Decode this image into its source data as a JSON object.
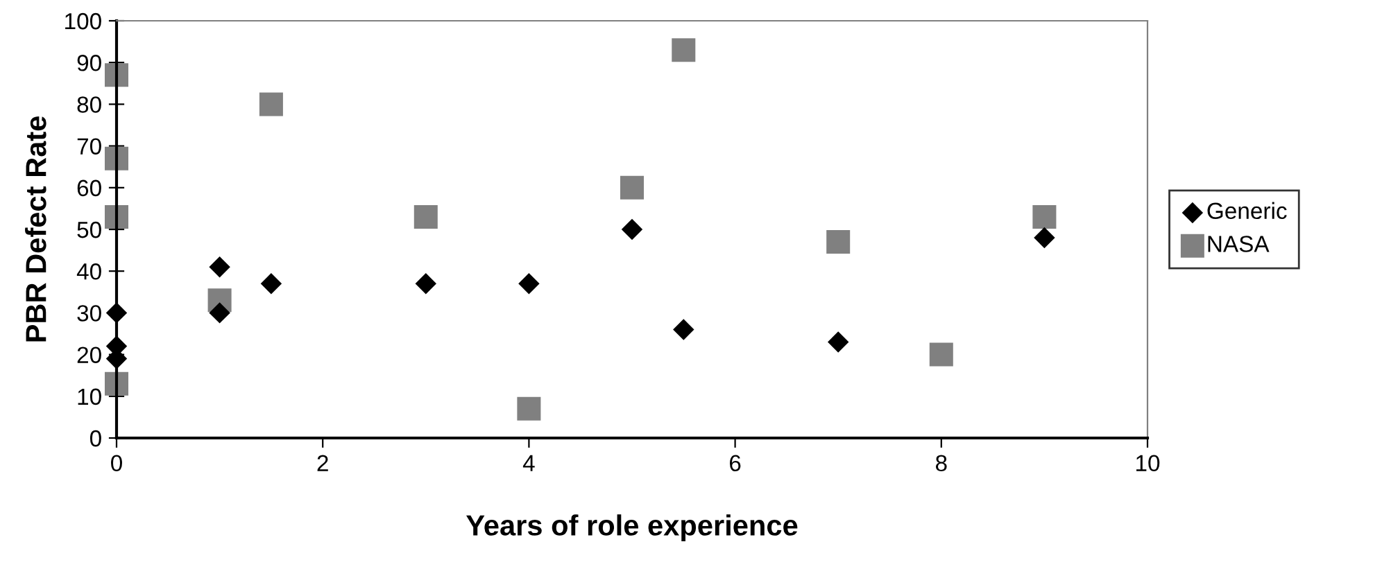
{
  "chart_data": {
    "type": "scatter",
    "xlabel": "Years of role experience",
    "ylabel": "PBR Defect Rate",
    "xlim": [
      0,
      10
    ],
    "xticks": [
      0,
      2,
      4,
      6,
      8,
      10
    ],
    "ylim": [
      0,
      100
    ],
    "yticks": [
      0,
      10,
      20,
      30,
      40,
      50,
      60,
      70,
      80,
      90,
      100
    ],
    "grid": false,
    "legend": "right",
    "series": [
      {
        "name": "Generic",
        "color": "#000000",
        "marker": "diamond",
        "x": [
          0,
          0,
          0,
          1,
          1,
          1.5,
          3,
          4,
          5,
          5.5,
          7,
          9
        ],
        "values": [
          30,
          22,
          19,
          41,
          30,
          37,
          37,
          37,
          50,
          26,
          23,
          48
        ]
      },
      {
        "name": "NASA",
        "color": "#808080",
        "marker": "square",
        "x": [
          0,
          0,
          0,
          0,
          1,
          1.5,
          3,
          4,
          5,
          5.5,
          7,
          8,
          9
        ],
        "values": [
          87,
          67,
          53,
          13,
          33,
          80,
          53,
          7,
          60,
          93,
          47,
          20,
          53
        ]
      }
    ]
  }
}
